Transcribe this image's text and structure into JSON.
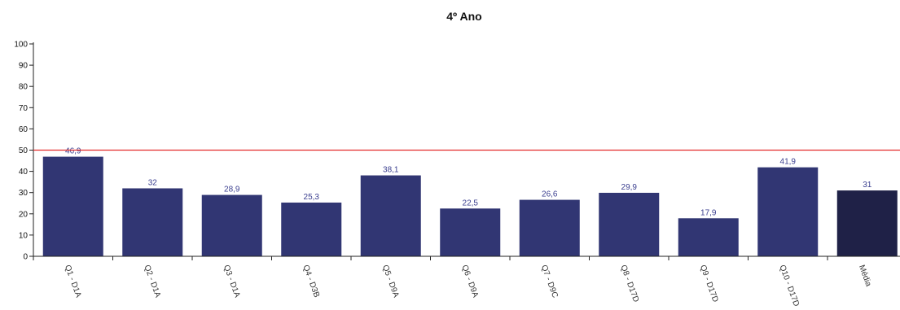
{
  "chart_data": {
    "type": "bar",
    "title": "4º Ano",
    "xlabel": "",
    "ylabel": "",
    "ylim": [
      0,
      100
    ],
    "yticks": [
      0,
      10,
      20,
      30,
      40,
      50,
      60,
      70,
      80,
      90,
      100
    ],
    "categories": [
      "Q1 - D1A",
      "Q2 - D1A",
      "Q3 - D1A",
      "Q4 - D3B",
      "Q5 - D9A",
      "Q6 - D9A",
      "Q7 - D9C",
      "Q8 - D17D",
      "Q9 - D17D",
      "Q10 - D17D",
      "Média"
    ],
    "values": [
      46.9,
      32,
      28.9,
      25.3,
      38.1,
      22.5,
      26.6,
      29.9,
      17.9,
      41.9,
      31
    ],
    "value_labels": [
      "46,9",
      "32",
      "28,9",
      "25,3",
      "38,1",
      "22,5",
      "26,6",
      "29,9",
      "17,9",
      "41,9",
      "31"
    ],
    "reference_line": 50,
    "grid": false,
    "colors": {
      "bar": "#313673",
      "average_bar": "#1f2147",
      "reference_line": "#e32b2b",
      "data_label": "#3b3f8f"
    }
  }
}
